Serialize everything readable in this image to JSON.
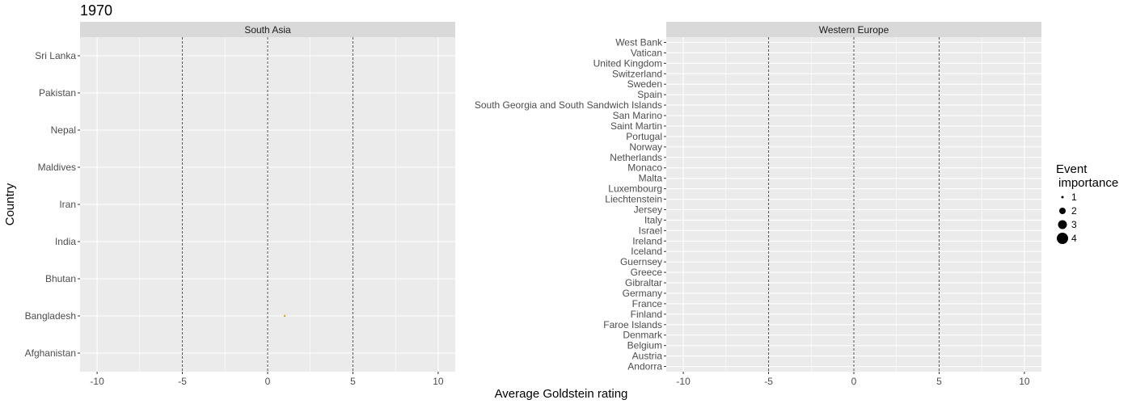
{
  "chart_data": {
    "type": "scatter",
    "title": "1970",
    "xlabel": "Average Goldstein rating",
    "ylabel": "Country",
    "xlim": [
      -11,
      11
    ],
    "x_ticks": [
      -10,
      -5,
      0,
      5,
      10
    ],
    "reference_lines": [
      -5,
      0,
      5
    ],
    "grid": true,
    "legend_position": "right",
    "legend": {
      "title_line1": "Event",
      "title_line2": "importance",
      "sizes": [
        1,
        2,
        3,
        4
      ]
    },
    "colors": {
      "panel_bg": "#ebebeb",
      "strip_bg": "#d9d9d9",
      "grid": "#ffffff",
      "ref_line": "#555555",
      "point": "#e69f00"
    },
    "panels": [
      {
        "name": "South Asia",
        "categories": [
          "Afghanistan",
          "Bangladesh",
          "Bhutan",
          "India",
          "Iran",
          "Maldives",
          "Nepal",
          "Pakistan",
          "Sri Lanka"
        ],
        "points": [
          {
            "country": "Bangladesh",
            "x": 1,
            "importance": 1
          }
        ]
      },
      {
        "name": "Western Europe",
        "categories": [
          "Andorra",
          "Austria",
          "Belgium",
          "Denmark",
          "Faroe Islands",
          "Finland",
          "France",
          "Germany",
          "Gibraltar",
          "Greece",
          "Guernsey",
          "Iceland",
          "Ireland",
          "Israel",
          "Italy",
          "Jersey",
          "Liechtenstein",
          "Luxembourg",
          "Malta",
          "Monaco",
          "Netherlands",
          "Norway",
          "Portugal",
          "Saint Martin",
          "San Marino",
          "South Georgia and South Sandwich Islands",
          "Spain",
          "Sweden",
          "Switzerland",
          "United Kingdom",
          "Vatican",
          "West Bank"
        ],
        "points": []
      }
    ]
  }
}
